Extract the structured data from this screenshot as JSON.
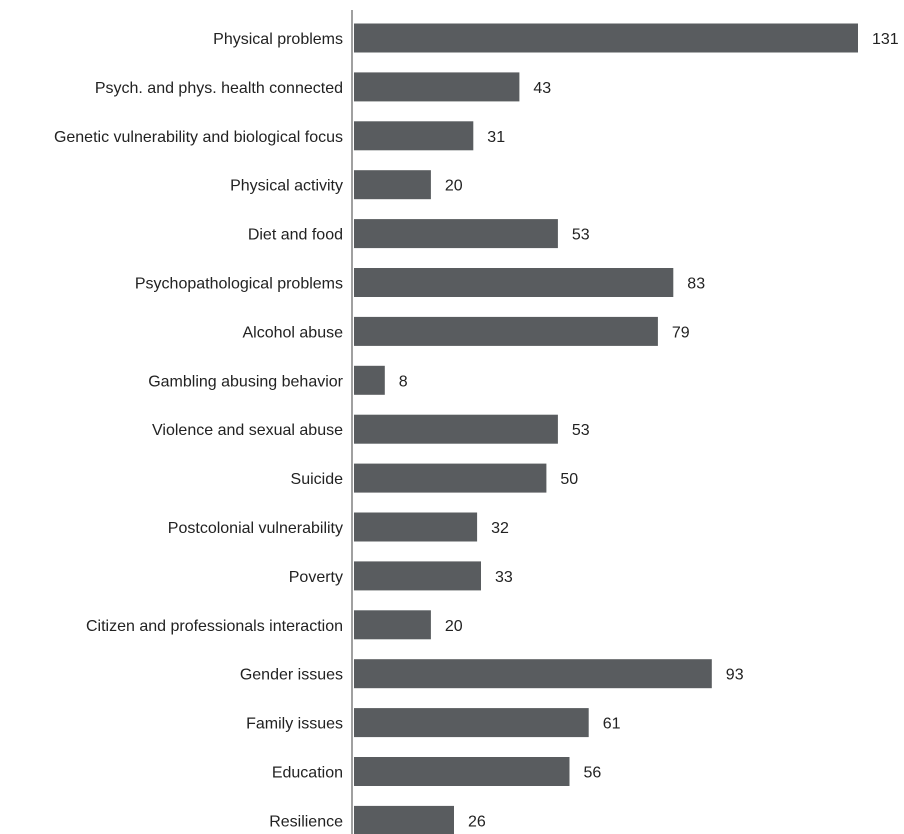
{
  "chart_data": {
    "type": "bar",
    "orientation": "horizontal",
    "categories": [
      "Physical problems",
      "Psych. and phys. health connected",
      "Genetic vulnerability and biological focus",
      "Physical activity",
      "Diet and food",
      "Psychopathological  problems",
      "Alcohol abuse",
      "Gambling abusing behavior",
      "Violence and sexual abuse",
      "Suicide",
      "Postcolonial vulnerability",
      "Poverty",
      "Citizen and professionals interaction",
      "Gender issues",
      "Family issues",
      "Education",
      "Resilience"
    ],
    "values": [
      131,
      43,
      31,
      20,
      53,
      83,
      79,
      8,
      53,
      50,
      32,
      33,
      20,
      93,
      61,
      56,
      26
    ],
    "value_labels": [
      "131",
      "43",
      "31",
      "20",
      "53",
      "83",
      "79",
      "8",
      "53",
      "50",
      "32",
      "33",
      "20",
      "93",
      "61",
      "56",
      "26"
    ],
    "title": "",
    "xlabel": "",
    "ylabel": "",
    "xlim": [
      0,
      131
    ],
    "grid": false,
    "legend": "none",
    "bar_color": "#595c5f",
    "axis_color": "#a0a0a0"
  }
}
